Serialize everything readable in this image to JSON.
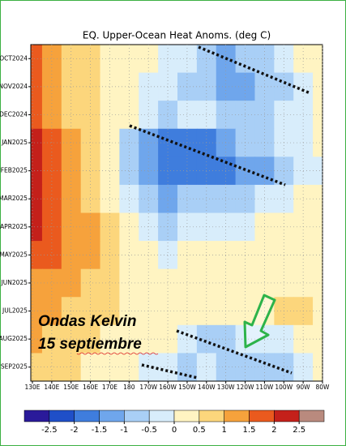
{
  "chart_data": {
    "type": "heatmap",
    "title": "EQ. Upper-Ocean Heat Anoms. (deg C)",
    "x_categories": [
      "130E",
      "140E",
      "150E",
      "160E",
      "170E",
      "180",
      "170W",
      "160W",
      "150W",
      "140W",
      "130W",
      "120W",
      "110W",
      "100W",
      "90W",
      "80W"
    ],
    "y_categories": [
      "OCT2024",
      "NOV2024",
      "DEC2024",
      "JAN2025",
      "FEB2025",
      "MAR2025",
      "APR2025",
      "MAY2025",
      "JUN2025",
      "JUL2025",
      "AUG2025",
      "SEP2025"
    ],
    "values": [
      [
        1.5,
        1.2,
        0.8,
        0.6,
        0.3,
        0.2,
        0.1,
        -0.2,
        -0.4,
        -1.0,
        -1.2,
        -0.8,
        -0.6,
        -0.3,
        0,
        0
      ],
      [
        1.6,
        1.3,
        0.8,
        0.5,
        0.3,
        0.1,
        -0.3,
        -0.5,
        -0.6,
        -0.7,
        -1.2,
        -1.3,
        -1.0,
        -0.6,
        -0.3,
        0
      ],
      [
        1.8,
        1.4,
        0.9,
        0.5,
        0.3,
        0,
        -0.5,
        -0.6,
        -0.5,
        -0.5,
        -0.6,
        -0.7,
        -0.8,
        -0.5,
        -0.2,
        0
      ],
      [
        2.0,
        1.6,
        1.0,
        0.6,
        0.2,
        -0.8,
        -1.3,
        -1.6,
        -1.8,
        -1.6,
        -1.2,
        -0.9,
        -0.6,
        -0.4,
        -0.2,
        0
      ],
      [
        2.1,
        1.7,
        1.2,
        0.7,
        0.2,
        -0.8,
        -1.5,
        -1.7,
        -1.8,
        -1.8,
        -1.6,
        -1.4,
        -1.2,
        -0.8,
        -0.4,
        -0.1
      ],
      [
        2.2,
        1.8,
        1.3,
        0.8,
        0.3,
        -0.5,
        -1.0,
        -1.2,
        -1.0,
        -0.8,
        -0.7,
        -0.6,
        -0.5,
        -0.3,
        0.2,
        0.2
      ],
      [
        2.0,
        1.8,
        1.4,
        1.0,
        0.5,
        0,
        -0.5,
        -0.8,
        -0.5,
        -0.3,
        -0.2,
        -0.1,
        0.2,
        0.3,
        0.3,
        0.2
      ],
      [
        1.8,
        1.6,
        1.4,
        1.0,
        0.6,
        0.3,
        0,
        -0.2,
        0,
        0.1,
        0.2,
        0.3,
        0.4,
        0.4,
        0.3,
        0.2
      ],
      [
        1.3,
        1.2,
        1.0,
        0.8,
        0.6,
        0.4,
        0.3,
        0.3,
        0.4,
        0.3,
        0.3,
        0.3,
        0.4,
        0.4,
        0.3,
        0.2
      ],
      [
        1.2,
        1.0,
        0.8,
        0.7,
        0.5,
        0.4,
        0.4,
        0.3,
        0.4,
        0.3,
        0.1,
        0.2,
        0.3,
        0.6,
        0.6,
        0.3
      ],
      [
        1.0,
        0.9,
        0.7,
        0.5,
        0.4,
        0.3,
        0.2,
        0.1,
        -0.3,
        -0.8,
        -0.7,
        -0.5,
        -0.4,
        -0.3,
        0.2,
        0.2
      ],
      [
        0.9,
        0.8,
        0.6,
        0.4,
        0.2,
        0,
        -0.3,
        -0.5,
        -0.6,
        -0.4,
        -0.7,
        -1.0,
        -0.9,
        -0.6,
        -0.2,
        0
      ]
    ],
    "colorbar": {
      "ticks": [
        -2.5,
        -2,
        -1.5,
        -1,
        -0.5,
        0,
        0.5,
        1,
        1.5,
        2,
        2.5
      ],
      "colors": [
        "#2a1a9a",
        "#1f4fc8",
        "#3f7ddd",
        "#6fa6ec",
        "#a9cff6",
        "#d8edfb",
        "#fff4c2",
        "#fcd67c",
        "#f6a23c",
        "#ea5a1e",
        "#c4201a",
        "#b98a7e"
      ]
    },
    "grid": true,
    "annotations": [
      "Ondas Kelvin",
      "15 septiembre"
    ]
  }
}
